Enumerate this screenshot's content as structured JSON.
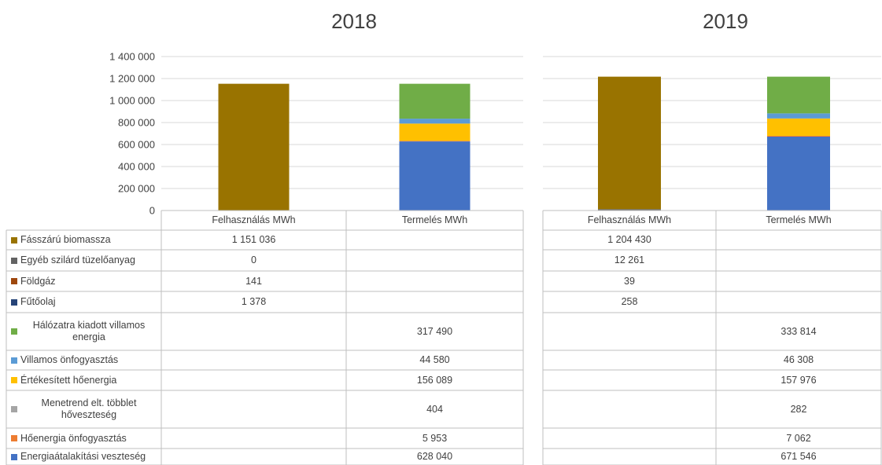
{
  "chart_data": [
    {
      "type": "bar",
      "stacked": true,
      "title": "2018",
      "categories": [
        "Felhasználás MWh",
        "Termelés MWh"
      ],
      "ylim": [
        0,
        1400000
      ],
      "yticks": [
        0,
        {
          "value": 200000,
          "label": "200 000"
        },
        {
          "value": 400000,
          "label": "400 000"
        },
        {
          "value": 600000,
          "label": "600 000"
        },
        {
          "value": 800000,
          "label": "800 000"
        },
        {
          "value": 1000000,
          "label": "1 000 000"
        },
        {
          "value": 1200000,
          "label": "1 200 000"
        },
        {
          "value": 1400000,
          "label": "1 400 000"
        }
      ],
      "grid": true,
      "series": [
        {
          "name": "Fásszárú biomassza",
          "color": "#997300",
          "values": [
            1151036,
            null
          ],
          "value_labels": [
            "1 151 036",
            null
          ]
        },
        {
          "name": "Egyéb szilárd tüzelőanyag",
          "color": "#636363",
          "values": [
            0,
            null
          ],
          "value_labels": [
            "0",
            null
          ]
        },
        {
          "name": "Földgáz",
          "color": "#9e480e",
          "values": [
            141,
            null
          ],
          "value_labels": [
            "141",
            null
          ]
        },
        {
          "name": "Fűtőolaj",
          "color": "#264478",
          "values": [
            1378,
            null
          ],
          "value_labels": [
            "1 378",
            null
          ]
        },
        {
          "name": "Hálózatra kiadott villamos energia",
          "color": "#70ad47",
          "values": [
            null,
            317490
          ],
          "value_labels": [
            null,
            "317 490"
          ]
        },
        {
          "name": "Villamos önfogyasztás",
          "color": "#5b9bd5",
          "values": [
            null,
            44580
          ],
          "value_labels": [
            null,
            "44 580"
          ]
        },
        {
          "name": "Értékesített hőenergia",
          "color": "#ffc000",
          "values": [
            null,
            156089
          ],
          "value_labels": [
            null,
            "156 089"
          ]
        },
        {
          "name": "Menetrend elt. többlet hőveszteség",
          "color": "#a5a5a5",
          "values": [
            null,
            404
          ],
          "value_labels": [
            null,
            "404"
          ]
        },
        {
          "name": "Hőenergia önfogyasztás",
          "color": "#ed7d31",
          "values": [
            null,
            5953
          ],
          "value_labels": [
            null,
            "5 953"
          ]
        },
        {
          "name": "Energiaátalakítási veszteség",
          "color": "#4472c4",
          "values": [
            null,
            628040
          ],
          "value_labels": [
            null,
            "628 040"
          ]
        }
      ]
    },
    {
      "type": "bar",
      "stacked": true,
      "title": "2019",
      "categories": [
        "Felhasználás MWh",
        "Termelés MWh"
      ],
      "ylim": [
        0,
        1400000
      ],
      "yticks": [
        0,
        200000,
        400000,
        600000,
        800000,
        1000000,
        1200000,
        1400000
      ],
      "grid": true,
      "series": [
        {
          "color": "#997300",
          "values": [
            1204430,
            null
          ],
          "value_labels": [
            "1 204 430",
            null
          ]
        },
        {
          "color": "#636363",
          "values": [
            12261,
            null
          ],
          "value_labels": [
            "12 261",
            null
          ]
        },
        {
          "color": "#9e480e",
          "values": [
            39,
            null
          ],
          "value_labels": [
            "39",
            null
          ]
        },
        {
          "color": "#264478",
          "values": [
            258,
            null
          ],
          "value_labels": [
            "258",
            null
          ]
        },
        {
          "color": "#70ad47",
          "values": [
            null,
            333814
          ],
          "value_labels": [
            null,
            "333 814"
          ]
        },
        {
          "color": "#5b9bd5",
          "values": [
            null,
            46308
          ],
          "value_labels": [
            null,
            "46 308"
          ]
        },
        {
          "color": "#ffc000",
          "values": [
            null,
            157976
          ],
          "value_labels": [
            null,
            "157 976"
          ]
        },
        {
          "color": "#a5a5a5",
          "values": [
            null,
            282
          ],
          "value_labels": [
            null,
            "282"
          ]
        },
        {
          "color": "#ed7d31",
          "values": [
            null,
            7062
          ],
          "value_labels": [
            null,
            "7 062"
          ]
        },
        {
          "color": "#4472c4",
          "values": [
            null,
            671546
          ],
          "value_labels": [
            null,
            "671 546"
          ]
        }
      ]
    }
  ]
}
